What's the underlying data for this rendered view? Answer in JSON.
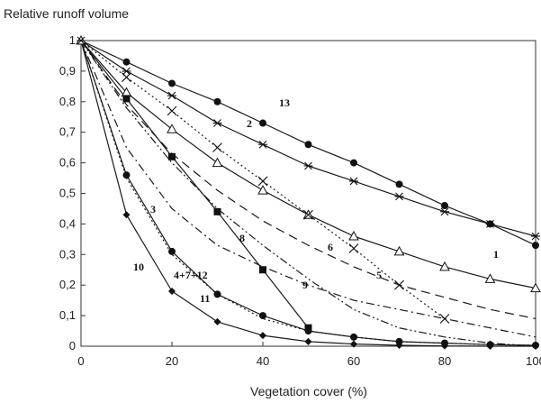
{
  "chart_data": {
    "type": "line",
    "ylabel": "Relative runoff volume",
    "xlabel": "Vegetation cover (%)",
    "xlim": [
      0,
      100
    ],
    "ylim": [
      0,
      1
    ],
    "x_ticks": [
      "0",
      "20",
      "40",
      "60",
      "80",
      "100"
    ],
    "y_ticks": [
      "0",
      "0,1",
      "0,2",
      "0,3",
      "0,4",
      "0,5",
      "0,6",
      "0,7",
      "0,8",
      "0,9",
      "1"
    ],
    "grid": false,
    "series": [
      {
        "name": "13",
        "marker": "filled-circle",
        "dash": "solid",
        "x": [
          0,
          10,
          20,
          30,
          40,
          50,
          60,
          70,
          80,
          90,
          100
        ],
        "y": [
          1,
          0.93,
          0.86,
          0.8,
          0.73,
          0.66,
          0.6,
          0.53,
          0.46,
          0.4,
          0.33
        ]
      },
      {
        "name": "2",
        "marker": "star",
        "dash": "solid",
        "x": [
          0,
          10,
          20,
          30,
          40,
          50,
          60,
          70,
          80,
          90,
          100
        ],
        "y": [
          1,
          0.9,
          0.82,
          0.73,
          0.66,
          0.59,
          0.54,
          0.49,
          0.44,
          0.4,
          0.36
        ]
      },
      {
        "name": "1",
        "marker": "open-triangle",
        "dash": "solid",
        "x": [
          0,
          10,
          20,
          30,
          40,
          50,
          60,
          70,
          80,
          90,
          100
        ],
        "y": [
          1,
          0.83,
          0.71,
          0.6,
          0.51,
          0.43,
          0.36,
          0.31,
          0.26,
          0.22,
          0.19
        ]
      },
      {
        "name": "5",
        "marker": "cross",
        "dash": "dotted",
        "x": [
          0,
          10,
          20,
          30,
          40,
          50,
          60,
          70,
          80
        ],
        "y": [
          1,
          0.88,
          0.77,
          0.65,
          0.54,
          0.43,
          0.32,
          0.2,
          0.09
        ]
      },
      {
        "name": "6",
        "marker": "none",
        "dash": "long-dash",
        "x": [
          0,
          10,
          20,
          30,
          40,
          50,
          60,
          70,
          80,
          90,
          100
        ],
        "y": [
          1,
          0.79,
          0.63,
          0.51,
          0.41,
          0.33,
          0.26,
          0.2,
          0.16,
          0.12,
          0.09
        ]
      },
      {
        "name": "9",
        "marker": "none",
        "dash": "dash-dot-dot",
        "x": [
          0,
          10,
          20,
          30,
          40,
          50,
          60,
          70,
          80,
          90,
          100
        ],
        "y": [
          1,
          0.78,
          0.6,
          0.45,
          0.33,
          0.22,
          0.12,
          0.06,
          0.03,
          0.01,
          0
        ]
      },
      {
        "name": "3",
        "marker": "none",
        "dash": "dash-dot",
        "x": [
          0,
          10,
          20,
          30,
          40,
          50,
          60,
          70,
          80,
          90,
          100
        ],
        "y": [
          1,
          0.65,
          0.45,
          0.33,
          0.26,
          0.2,
          0.15,
          0.12,
          0.09,
          0.06,
          0.03
        ]
      },
      {
        "name": "8",
        "marker": "filled-square",
        "dash": "solid",
        "x": [
          0,
          10,
          20,
          30,
          40,
          50
        ],
        "y": [
          1,
          0.81,
          0.62,
          0.44,
          0.25,
          0.06
        ]
      },
      {
        "name": "4+7+12",
        "marker": "filled-circle",
        "dash": "solid",
        "x": [
          0,
          10,
          20,
          30,
          40,
          50,
          60,
          70,
          80,
          90,
          100
        ],
        "y": [
          1,
          0.56,
          0.31,
          0.17,
          0.1,
          0.05,
          0.03,
          0.015,
          0.01,
          0.005,
          0.003
        ]
      },
      {
        "name": "11",
        "marker": "none",
        "dash": "dotted",
        "x": [
          0,
          10,
          20,
          30,
          40,
          50,
          60,
          70,
          80,
          90,
          100
        ],
        "y": [
          1,
          0.55,
          0.3,
          0.17,
          0.09,
          0.05,
          0.03,
          0.015,
          0.01,
          0.005,
          0.003
        ]
      },
      {
        "name": "10",
        "marker": "filled-diamond",
        "dash": "solid",
        "x": [
          0,
          10,
          20,
          30,
          40,
          50,
          60,
          70,
          80,
          90,
          100
        ],
        "y": [
          1,
          0.43,
          0.18,
          0.08,
          0.035,
          0.015,
          0.007,
          0.003,
          0.001,
          0,
          0
        ]
      }
    ]
  }
}
